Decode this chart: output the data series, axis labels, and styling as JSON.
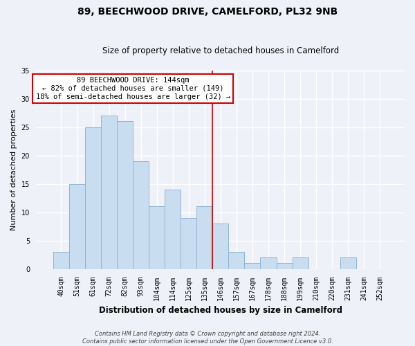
{
  "title": "89, BEECHWOOD DRIVE, CAMELFORD, PL32 9NB",
  "subtitle": "Size of property relative to detached houses in Camelford",
  "xlabel": "Distribution of detached houses by size in Camelford",
  "ylabel": "Number of detached properties",
  "bar_labels": [
    "40sqm",
    "51sqm",
    "61sqm",
    "72sqm",
    "82sqm",
    "93sqm",
    "104sqm",
    "114sqm",
    "125sqm",
    "135sqm",
    "146sqm",
    "157sqm",
    "167sqm",
    "178sqm",
    "188sqm",
    "199sqm",
    "210sqm",
    "220sqm",
    "231sqm",
    "241sqm",
    "252sqm"
  ],
  "bar_values": [
    3,
    15,
    25,
    27,
    26,
    19,
    11,
    14,
    9,
    11,
    8,
    3,
    1,
    2,
    1,
    2,
    0,
    0,
    2,
    0,
    0
  ],
  "bar_color": "#c9ddf0",
  "bar_edge_color": "#91b4d4",
  "property_line_index": 10,
  "ylim": [
    0,
    35
  ],
  "yticks": [
    0,
    5,
    10,
    15,
    20,
    25,
    30,
    35
  ],
  "annotation_title": "89 BEECHWOOD DRIVE: 144sqm",
  "annotation_line1": "← 82% of detached houses are smaller (149)",
  "annotation_line2": "18% of semi-detached houses are larger (32) →",
  "annotation_box_facecolor": "#ffffff",
  "annotation_box_edgecolor": "#cc0000",
  "property_line_color": "#cc0000",
  "footer_line1": "Contains HM Land Registry data © Crown copyright and database right 2024.",
  "footer_line2": "Contains public sector information licensed under the Open Government Licence v3.0.",
  "background_color": "#eef2f8",
  "grid_color": "#ffffff",
  "title_fontsize": 10,
  "subtitle_fontsize": 8.5,
  "ylabel_fontsize": 8,
  "xlabel_fontsize": 8.5,
  "tick_fontsize": 7,
  "annotation_fontsize": 7.5,
  "footer_fontsize": 6
}
